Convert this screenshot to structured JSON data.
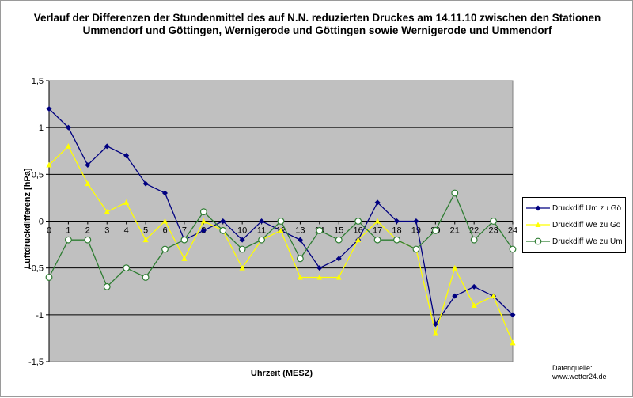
{
  "chart_data": {
    "type": "line",
    "title": "Verlauf der Differenzen der Stundenmittel des auf N.N. reduzierten Druckes am 14.11.10 zwischen den Stationen Ummendorf und Göttingen, Wernigerode und Göttingen sowie Wernigerode und Ummendorf",
    "xlabel": "Uhrzeit (MESZ)",
    "ylabel": "Luftdruckdifferenz [hPa]",
    "x": [
      0,
      1,
      2,
      3,
      4,
      5,
      6,
      7,
      8,
      9,
      10,
      11,
      12,
      13,
      14,
      15,
      16,
      17,
      18,
      19,
      20,
      21,
      22,
      23,
      24
    ],
    "x_tick_labels": [
      "0",
      "1",
      "2",
      "3",
      "4",
      "5",
      "6",
      "7",
      "8",
      "9",
      "10",
      "11",
      "12",
      "13",
      "14",
      "15",
      "16",
      "17",
      "18",
      "19",
      "20",
      "21",
      "22",
      "23",
      "24"
    ],
    "ylim": [
      -1.5,
      1.5
    ],
    "y_ticks": [
      1.5,
      1,
      0.5,
      0,
      -0.5,
      -1,
      -1.5
    ],
    "y_tick_labels": [
      "1,5",
      "1",
      "0,5",
      "0",
      "-0,5",
      "-1",
      "-1,5"
    ],
    "grid": true,
    "legend_position": "right",
    "series": [
      {
        "name": "Druckdiff Um zu Gö",
        "color": "#000080",
        "marker": "diamond",
        "values": [
          1.2,
          1.0,
          0.6,
          0.8,
          0.7,
          0.4,
          0.3,
          -0.2,
          -0.1,
          0.0,
          -0.2,
          0.0,
          -0.1,
          -0.2,
          -0.5,
          -0.4,
          -0.2,
          0.2,
          0.0,
          0.0,
          -1.1,
          -0.8,
          -0.7,
          -0.8,
          -1.0
        ]
      },
      {
        "name": "Druckdiff We zu Gö",
        "color": "#ffff00",
        "marker": "triangle",
        "values": [
          0.6,
          0.8,
          0.4,
          0.1,
          0.2,
          -0.2,
          0.0,
          -0.4,
          0.0,
          -0.1,
          -0.5,
          -0.2,
          -0.1,
          -0.6,
          -0.6,
          -0.6,
          -0.2,
          0.0,
          -0.2,
          -0.3,
          -1.2,
          -0.5,
          -0.9,
          -0.8,
          -1.3
        ]
      },
      {
        "name": "Druckdiff We zu Um",
        "color": "#2e7d32",
        "marker": "circle",
        "values": [
          -0.6,
          -0.2,
          -0.2,
          -0.7,
          -0.5,
          -0.6,
          -0.3,
          -0.2,
          0.1,
          -0.1,
          -0.3,
          -0.2,
          0.0,
          -0.4,
          -0.1,
          -0.2,
          0.0,
          -0.2,
          -0.2,
          -0.3,
          -0.1,
          0.3,
          -0.2,
          0.0,
          -0.3
        ]
      }
    ]
  },
  "source_line1": "Datenquelle:",
  "source_line2": "www.wetter24.de",
  "colors": {
    "plot_background": "#c0c0c0"
  }
}
